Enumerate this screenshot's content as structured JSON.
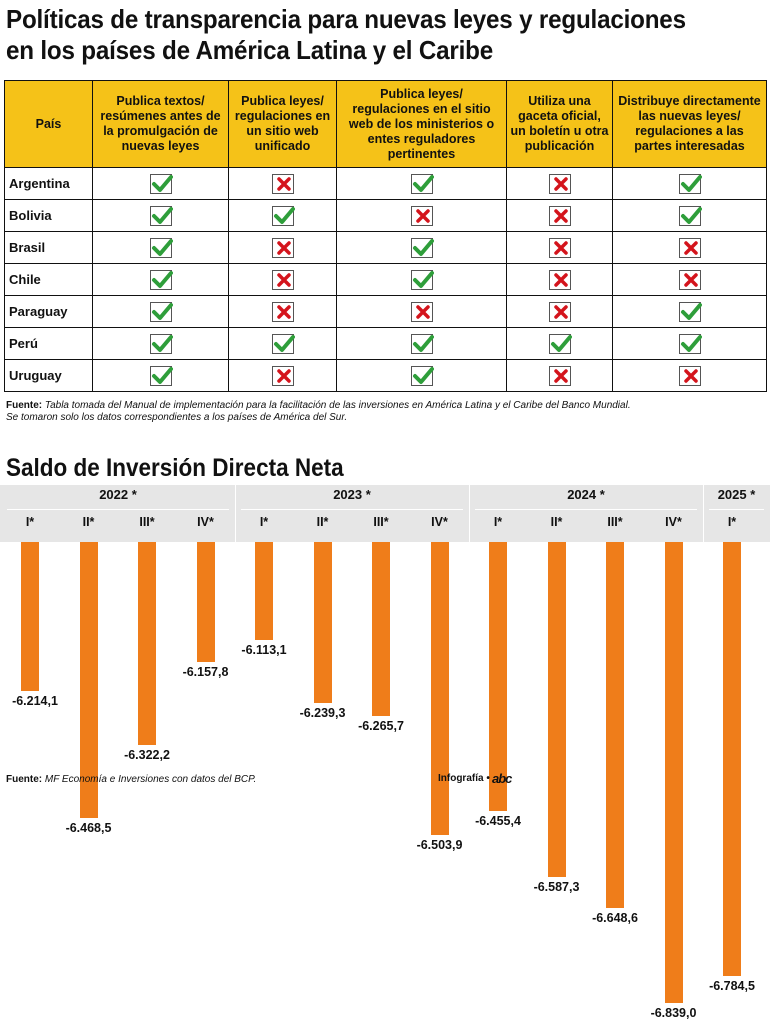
{
  "title": "Políticas de transparencia para nuevas leyes y regulaciones en los países de América Latina y el Caribe",
  "table": {
    "headers": [
      "País",
      "Publica textos/ resúmenes antes de la promulgación de nuevas leyes",
      "Publica leyes/ regulaciones en un sitio web unificado",
      "Publica leyes/ regulaciones en el sitio web de los ministerios o entes reguladores pertinentes",
      "Utiliza una gaceta oficial, un boletín u otra publicación",
      "Distribuye directamente las nuevas leyes/ regulaciones a las partes interesadas"
    ],
    "rows": [
      {
        "country": "Argentina",
        "values": [
          true,
          false,
          true,
          false,
          true
        ]
      },
      {
        "country": "Bolivia",
        "values": [
          true,
          true,
          false,
          false,
          true
        ]
      },
      {
        "country": "Brasil",
        "values": [
          true,
          false,
          true,
          false,
          false
        ]
      },
      {
        "country": "Chile",
        "values": [
          true,
          false,
          true,
          false,
          false
        ]
      },
      {
        "country": "Paraguay",
        "values": [
          true,
          false,
          false,
          false,
          true
        ]
      },
      {
        "country": "Perú",
        "values": [
          true,
          true,
          true,
          true,
          true
        ]
      },
      {
        "country": "Uruguay",
        "values": [
          true,
          false,
          true,
          false,
          false
        ]
      }
    ],
    "check_color": "#2e9e3a",
    "cross_color": "#d4141c",
    "header_color": "#f5c218"
  },
  "source1": {
    "label": "Fuente:",
    "line1": "Tabla tomada del Manual de implementación para la facilitación de las inversiones en América Latina y el Caribe del Banco Mundial.",
    "line2": "Se tomaron solo los datos correspondientes a los países de América del Sur."
  },
  "chart_data": {
    "type": "bar",
    "title": "Saldo de Inversión Directa Neta",
    "years": [
      {
        "label": "2022 *",
        "quarters": [
          "I*",
          "II*",
          "III*",
          "IV*"
        ]
      },
      {
        "label": "2023 *",
        "quarters": [
          "I*",
          "II*",
          "III*",
          "IV*"
        ]
      },
      {
        "label": "2024 *",
        "quarters": [
          "I*",
          "II*",
          "III*",
          "IV*"
        ]
      },
      {
        "label": "2025 *",
        "quarters": [
          "I*"
        ]
      }
    ],
    "values": [
      -6214.1,
      -6468.5,
      -6322.2,
      -6157.8,
      -6113.1,
      -6239.3,
      -6265.7,
      -6503.9,
      -6455.4,
      -6587.3,
      -6648.6,
      -6839.0,
      -6784.5
    ],
    "value_labels": [
      "-6.214,1",
      "-6.468,5",
      "-6.322,2",
      "-6.157,8",
      "-6.113,1",
      "-6.239,3",
      "-6.265,7",
      "-6.503,9",
      "-6.455,4",
      "-6.587,3",
      "-6.648,6",
      "-6.839,0",
      "-6.784,5"
    ],
    "bar_color": "#ef7d1a"
  },
  "source2": {
    "label": "Fuente:",
    "text": "MF Economía e Inversiones con datos del BCP."
  },
  "credit": "Infografía •",
  "logo": "abc"
}
